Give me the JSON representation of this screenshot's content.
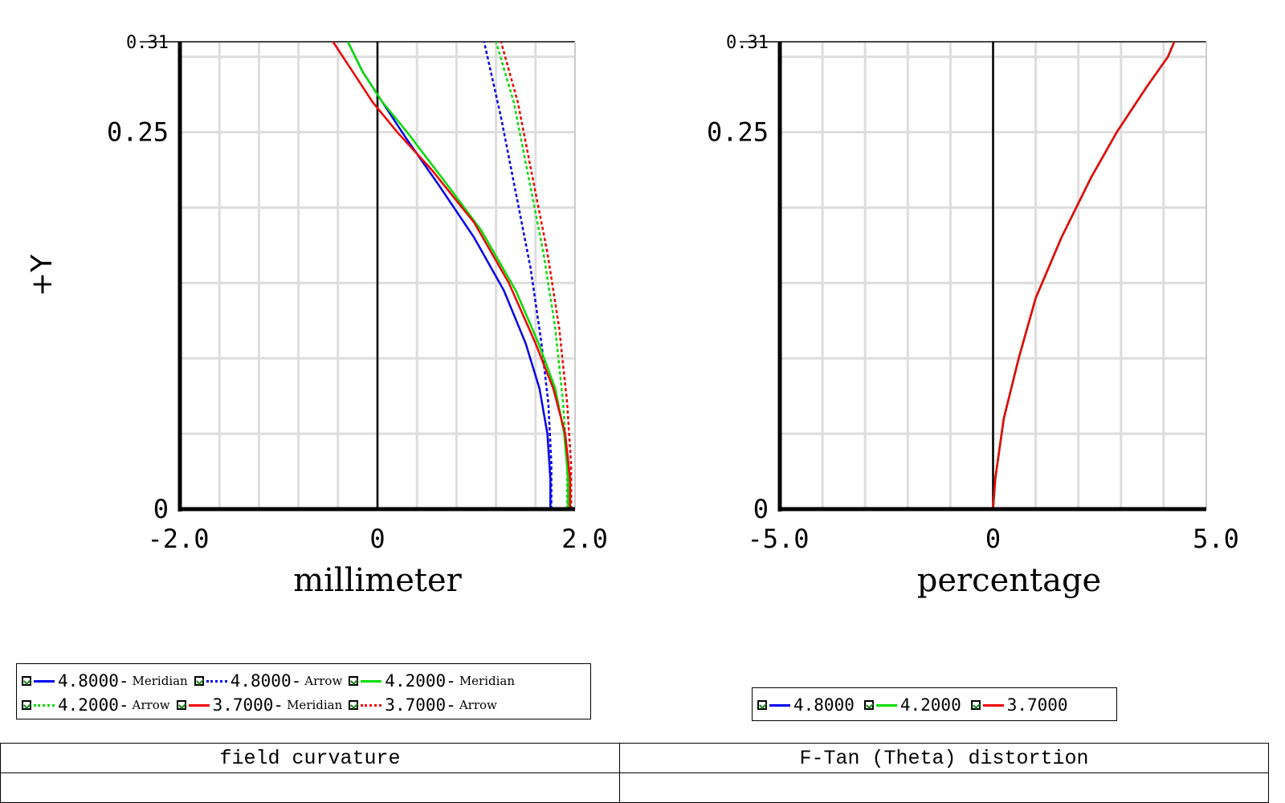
{
  "chart_data": [
    {
      "type": "line",
      "ylabel": "+Y",
      "xlabel": "millimeter",
      "xlim": [
        -2.0,
        2.0
      ],
      "ylim": [
        0,
        0.31
      ],
      "xticks": [
        "-2.0",
        "0",
        "2.0"
      ],
      "yticks": [
        {
          "value": 0.31,
          "label": "0.31"
        },
        {
          "value": 0.25,
          "label": "0.25"
        },
        {
          "value": 0,
          "label": "0"
        }
      ],
      "grid": true,
      "series": [
        {
          "name": "4.8000-Meridian",
          "color": "#0000ee",
          "dash": "solid",
          "points": [
            [
              1.75,
              0
            ],
            [
              1.75,
              0.02
            ],
            [
              1.72,
              0.05
            ],
            [
              1.64,
              0.08
            ],
            [
              1.5,
              0.11
            ],
            [
              1.28,
              0.145
            ],
            [
              0.98,
              0.18
            ],
            [
              0.62,
              0.215
            ],
            [
              0.3,
              0.245
            ],
            [
              0.05,
              0.27
            ],
            [
              -0.15,
              0.29
            ],
            [
              -0.3,
              0.31
            ]
          ]
        },
        {
          "name": "4.8000-Arrow",
          "color": "#0000ee",
          "dash": "dotted",
          "points": [
            [
              1.76,
              0
            ],
            [
              1.76,
              0.03
            ],
            [
              1.73,
              0.07
            ],
            [
              1.66,
              0.11
            ],
            [
              1.55,
              0.16
            ],
            [
              1.4,
              0.21
            ],
            [
              1.25,
              0.26
            ],
            [
              1.08,
              0.31
            ]
          ]
        },
        {
          "name": "4.2000-Meridian",
          "color": "#00dd00",
          "dash": "solid",
          "points": [
            [
              1.93,
              0
            ],
            [
              1.93,
              0.02
            ],
            [
              1.89,
              0.05
            ],
            [
              1.8,
              0.08
            ],
            [
              1.63,
              0.11
            ],
            [
              1.4,
              0.145
            ],
            [
              1.05,
              0.185
            ],
            [
              0.65,
              0.22
            ],
            [
              0.3,
              0.25
            ],
            [
              0.05,
              0.27
            ],
            [
              -0.15,
              0.29
            ],
            [
              -0.3,
              0.31
            ]
          ]
        },
        {
          "name": "4.2000-Arrow",
          "color": "#00dd00",
          "dash": "dotted",
          "points": [
            [
              1.92,
              0
            ],
            [
              1.92,
              0.03
            ],
            [
              1.88,
              0.07
            ],
            [
              1.8,
              0.12
            ],
            [
              1.68,
              0.17
            ],
            [
              1.53,
              0.22
            ],
            [
              1.38,
              0.27
            ],
            [
              1.2,
              0.31
            ]
          ]
        },
        {
          "name": "3.7000-Meridian",
          "color": "#ee0000",
          "dash": "solid",
          "points": [
            [
              1.95,
              0
            ],
            [
              1.95,
              0.02
            ],
            [
              1.9,
              0.05
            ],
            [
              1.78,
              0.08
            ],
            [
              1.6,
              0.11
            ],
            [
              1.33,
              0.15
            ],
            [
              0.98,
              0.19
            ],
            [
              0.55,
              0.225
            ],
            [
              0.2,
              0.25
            ],
            [
              -0.05,
              0.27
            ],
            [
              -0.25,
              0.29
            ],
            [
              -0.45,
              0.31
            ]
          ]
        },
        {
          "name": "3.7000-Arrow",
          "color": "#ee0000",
          "dash": "dotted",
          "points": [
            [
              1.96,
              0
            ],
            [
              1.96,
              0.03
            ],
            [
              1.92,
              0.07
            ],
            [
              1.84,
              0.12
            ],
            [
              1.72,
              0.17
            ],
            [
              1.57,
              0.22
            ],
            [
              1.42,
              0.27
            ],
            [
              1.25,
              0.31
            ]
          ]
        }
      ],
      "legend": {
        "placement": "bottom",
        "rows": [
          [
            {
              "value": "4.8000",
              "tag": "Meridian",
              "color": "#0000ee",
              "dash": "solid"
            },
            {
              "value": "4.8000",
              "tag": "Arrow",
              "color": "#0000ee",
              "dash": "dotted"
            },
            {
              "value": "4.2000",
              "tag": "Meridian",
              "color": "#00dd00",
              "dash": "solid"
            }
          ],
          [
            {
              "value": "4.2000",
              "tag": "Arrow",
              "color": "#00dd00",
              "dash": "dotted"
            },
            {
              "value": "3.7000",
              "tag": "Meridian",
              "color": "#ee0000",
              "dash": "solid"
            },
            {
              "value": "3.7000",
              "tag": "Arrow",
              "color": "#ee0000",
              "dash": "dotted"
            }
          ]
        ]
      }
    },
    {
      "type": "line",
      "xlabel": "percentage",
      "xlim": [
        -5.0,
        5.0
      ],
      "ylim": [
        0,
        0.31
      ],
      "xticks": [
        "-5.0",
        "0",
        "5.0"
      ],
      "yticks": [
        {
          "value": 0.31,
          "label": "0.31"
        },
        {
          "value": 0.25,
          "label": "0.25"
        },
        {
          "value": 0,
          "label": "0"
        }
      ],
      "grid": true,
      "series": [
        {
          "name": "4.8000",
          "color": "#0000ee",
          "dash": "solid",
          "points": [
            [
              0,
              0
            ],
            [
              0.05,
              0.02
            ],
            [
              0.25,
              0.06
            ],
            [
              0.6,
              0.1
            ],
            [
              1.0,
              0.14
            ],
            [
              1.6,
              0.18
            ],
            [
              2.3,
              0.22
            ],
            [
              2.9,
              0.25
            ],
            [
              3.6,
              0.28
            ],
            [
              4.1,
              0.3
            ],
            [
              4.25,
              0.31
            ]
          ]
        },
        {
          "name": "4.2000",
          "color": "#00dd00",
          "dash": "solid",
          "points": [
            [
              0,
              0
            ],
            [
              0.05,
              0.02
            ],
            [
              0.25,
              0.06
            ],
            [
              0.6,
              0.1
            ],
            [
              1.0,
              0.14
            ],
            [
              1.6,
              0.18
            ],
            [
              2.3,
              0.22
            ],
            [
              2.9,
              0.25
            ],
            [
              3.6,
              0.28
            ],
            [
              4.1,
              0.3
            ],
            [
              4.25,
              0.31
            ]
          ]
        },
        {
          "name": "3.7000",
          "color": "#ee0000",
          "dash": "solid",
          "points": [
            [
              0,
              0
            ],
            [
              0.05,
              0.02
            ],
            [
              0.25,
              0.06
            ],
            [
              0.6,
              0.1
            ],
            [
              1.0,
              0.14
            ],
            [
              1.6,
              0.18
            ],
            [
              2.3,
              0.22
            ],
            [
              2.9,
              0.25
            ],
            [
              3.6,
              0.28
            ],
            [
              4.1,
              0.3
            ],
            [
              4.25,
              0.31
            ]
          ]
        }
      ],
      "legend": {
        "placement": "bottom",
        "rows": [
          [
            {
              "value": "4.8000",
              "tag": "",
              "color": "#0000ee",
              "dash": "solid"
            },
            {
              "value": "4.2000",
              "tag": "",
              "color": "#00dd00",
              "dash": "solid"
            },
            {
              "value": "3.7000",
              "tag": "",
              "color": "#ee0000",
              "dash": "solid"
            }
          ]
        ]
      }
    }
  ],
  "table": {
    "left_caption": "field curvature",
    "right_caption": "F-Tan (Theta) distortion"
  }
}
